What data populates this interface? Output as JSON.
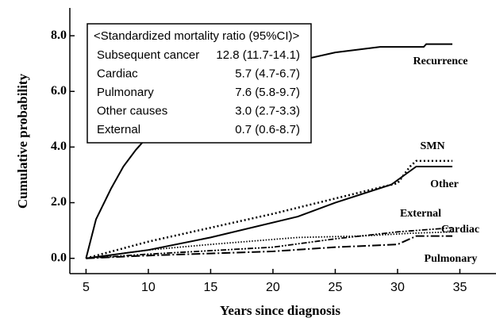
{
  "chart_data": {
    "type": "line",
    "x_label": "Years since diagnosis",
    "y_label": "Cumulative probability",
    "xlim": [
      3.7,
      37.9
    ],
    "ylim": [
      -0.55,
      9.0
    ],
    "xticks": [
      5,
      10,
      15,
      20,
      25,
      30,
      35
    ],
    "yticks": [
      {
        "value": 0,
        "label": "0.0"
      },
      {
        "value": 2,
        "label": "2.0"
      },
      {
        "value": 4,
        "label": "4.0"
      },
      {
        "value": 6,
        "label": "6.0"
      },
      {
        "value": 8,
        "label": "8.0"
      }
    ],
    "series": [
      {
        "name": "Recurrence",
        "color": "#000000",
        "line_style": "solid",
        "x": [
          5,
          5.8,
          7,
          8,
          9,
          10,
          14,
          20,
          25,
          28.6,
          32.1,
          32.3,
          34.4
        ],
        "values": [
          0,
          1.4,
          2.5,
          3.3,
          3.9,
          4.4,
          5.8,
          6.9,
          7.4,
          7.6,
          7.6,
          7.7,
          7.7
        ]
      },
      {
        "name": "SMN",
        "color": "#000000",
        "line_style": "dotted",
        "x": [
          5,
          10,
          15,
          20,
          25,
          30,
          31,
          31.5,
          34.4
        ],
        "values": [
          0,
          0.6,
          1.1,
          1.6,
          2.15,
          2.7,
          3.3,
          3.5,
          3.5
        ]
      },
      {
        "name": "Other",
        "color": "#000000",
        "line_style": "solid",
        "x": [
          5,
          10,
          15,
          22,
          25,
          29.5,
          31.5,
          34.4
        ],
        "values": [
          0,
          0.3,
          0.75,
          1.5,
          2.0,
          2.65,
          3.3,
          3.3
        ]
      },
      {
        "name": "External",
        "color": "#000000",
        "line_style": "dash-dot-dot",
        "x": [
          5,
          10,
          20,
          25,
          30,
          34.4
        ],
        "values": [
          0,
          0.15,
          0.4,
          0.7,
          0.95,
          1.1
        ]
      },
      {
        "name": "Cardiac",
        "color": "#000000",
        "line_style": "fine-dotted",
        "x": [
          5,
          10,
          15,
          22,
          27,
          31,
          34.4
        ],
        "values": [
          0,
          0.3,
          0.5,
          0.75,
          0.8,
          0.9,
          0.95
        ]
      },
      {
        "name": "Pulmonary",
        "color": "#000000",
        "line_style": "dash-dot",
        "x": [
          5,
          10,
          20,
          25,
          30,
          31.5,
          34.4
        ],
        "values": [
          0,
          0.1,
          0.25,
          0.4,
          0.5,
          0.8,
          0.8
        ]
      }
    ],
    "smr_table": {
      "title": "<Standardized mortality ratio (95%CI)>",
      "rows": [
        [
          "Subsequent cancer",
          "12.8 (11.7-14.1)"
        ],
        [
          "Cardiac",
          "5.7 (4.7-6.7)"
        ],
        [
          "Pulmonary",
          "7.6 (5.8-9.7)"
        ],
        [
          "Other causes",
          "3.0 (2.7-3.3)"
        ],
        [
          "External",
          "0.7 (0.6-8.7)"
        ]
      ]
    }
  }
}
